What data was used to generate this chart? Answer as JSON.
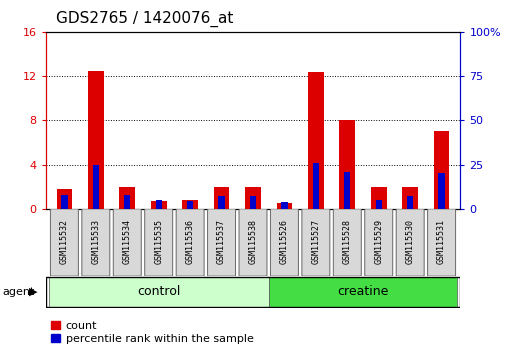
{
  "title": "GDS2765 / 1420076_at",
  "samples": [
    "GSM115532",
    "GSM115533",
    "GSM115534",
    "GSM115535",
    "GSM115536",
    "GSM115537",
    "GSM115538",
    "GSM115526",
    "GSM115527",
    "GSM115528",
    "GSM115529",
    "GSM115530",
    "GSM115531"
  ],
  "count_values": [
    1.8,
    12.5,
    2.0,
    0.7,
    0.8,
    2.0,
    2.0,
    0.5,
    12.4,
    8.0,
    2.0,
    2.0,
    7.0
  ],
  "percentile_values": [
    8.0,
    25.0,
    8.0,
    5.0,
    4.5,
    7.0,
    7.5,
    4.0,
    26.0,
    21.0,
    5.0,
    7.0,
    20.0
  ],
  "count_color": "#dd0000",
  "percentile_color": "#0000cc",
  "ylim_left": [
    0,
    16
  ],
  "yticks_left": [
    0,
    4,
    8,
    12,
    16
  ],
  "ylim_right": [
    0,
    100
  ],
  "yticks_right": [
    0,
    25,
    50,
    75,
    100
  ],
  "groups": [
    {
      "label": "control",
      "start": 0,
      "end": 7,
      "color": "#ccffcc"
    },
    {
      "label": "creatine",
      "start": 7,
      "end": 13,
      "color": "#44dd44"
    }
  ],
  "agent_label": "agent",
  "bar_width": 0.5,
  "legend_labels": [
    "count",
    "percentile rank within the sample"
  ]
}
